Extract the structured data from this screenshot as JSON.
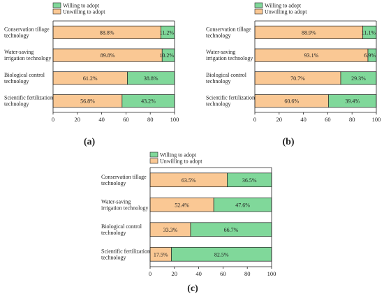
{
  "colors": {
    "unwilling": "#FAC894",
    "willing": "#80D89A",
    "stroke": "#222222"
  },
  "legend": {
    "willing": "Willing to adopt",
    "unwilling": "Unwilling to adopt"
  },
  "chart_data": [
    {
      "type": "bar",
      "orientation": "horizontal",
      "stacked": true,
      "label": "(a)",
      "categories": [
        [
          "Conservation tillage",
          "technology"
        ],
        [
          "Water-saving",
          "irrigation technology"
        ],
        [
          "Biological control",
          "technology"
        ],
        [
          "Scientific fertilization",
          "technology"
        ]
      ],
      "series": [
        {
          "name": "Unwilling to adopt",
          "values": [
            88.8,
            89.8,
            61.2,
            56.8
          ],
          "labels": [
            "88.8%",
            "89.8%",
            "61.2%",
            "56.8%"
          ]
        },
        {
          "name": "Willing to adopt",
          "values": [
            11.2,
            10.2,
            38.8,
            43.2
          ],
          "labels": [
            "11.2%",
            "10.2%",
            "38.8%",
            "43.2%"
          ]
        }
      ],
      "xlim": [
        0,
        100
      ],
      "xticks": [
        "0",
        "20",
        "40",
        "60",
        "80",
        "100"
      ]
    },
    {
      "type": "bar",
      "orientation": "horizontal",
      "stacked": true,
      "label": "(b)",
      "categories": [
        [
          "Conservation tillage",
          "technology"
        ],
        [
          "Water-saving",
          "irrigation technology"
        ],
        [
          "Biological control",
          "technology"
        ],
        [
          "Scientific fertilization",
          "technology"
        ]
      ],
      "series": [
        {
          "name": "Unwilling to adopt",
          "values": [
            88.9,
            93.1,
            70.7,
            60.6
          ],
          "labels": [
            "88.9%",
            "93.1%",
            "70.7%",
            "60.6%"
          ]
        },
        {
          "name": "Willing to adopt",
          "values": [
            11.1,
            6.9,
            29.3,
            39.4
          ],
          "labels": [
            "11.1%",
            "6.9%",
            "29.3%",
            "39.4%"
          ]
        }
      ],
      "xlim": [
        0,
        100
      ],
      "xticks": [
        "0",
        "20",
        "40",
        "60",
        "80",
        "100"
      ]
    },
    {
      "type": "bar",
      "orientation": "horizontal",
      "stacked": true,
      "label": "(c)",
      "categories": [
        [
          "Conservation tillage",
          "technology"
        ],
        [
          "Water-saving",
          "irrigation technology"
        ],
        [
          "Biological control",
          "technology"
        ],
        [
          "Scientific fertilization",
          "technology"
        ]
      ],
      "series": [
        {
          "name": "Unwilling to adopt",
          "values": [
            63.5,
            52.4,
            33.3,
            17.5
          ],
          "labels": [
            "63.5%",
            "52.4%",
            "33.3%",
            "17.5%"
          ]
        },
        {
          "name": "Willing to adopt",
          "values": [
            36.5,
            47.6,
            66.7,
            82.5
          ],
          "labels": [
            "36.5%",
            "47.6%",
            "66.7%",
            "82.5%"
          ]
        }
      ],
      "xlim": [
        0,
        100
      ],
      "xticks": [
        "0",
        "20",
        "40",
        "60",
        "80",
        "100"
      ]
    }
  ]
}
